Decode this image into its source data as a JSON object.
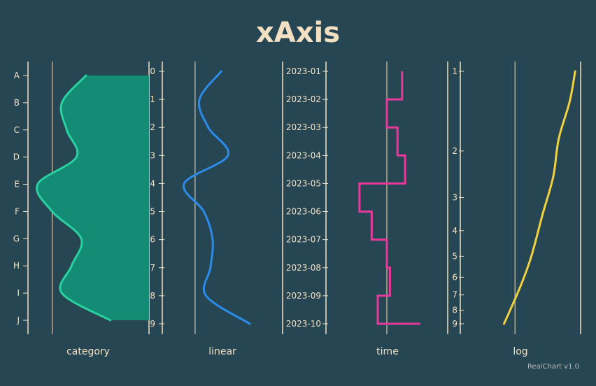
{
  "title": "xAxis",
  "credit": "RealChart v1.0",
  "colors": {
    "background": "#264653",
    "axis": "#f3e0c2",
    "text": "#f3e0c2",
    "category_line": "#2ad0a0",
    "category_fill": "#138b75",
    "linear_line": "#2b8be8",
    "time_line": "#e8399b",
    "log_line": "#f2d13f"
  },
  "chart_data": [
    {
      "type": "area",
      "axis_type": "category",
      "xlabel": "category",
      "categories": [
        "A",
        "B",
        "C",
        "D",
        "E",
        "F",
        "G",
        "H",
        "I",
        "J"
      ],
      "values": [
        7,
        2,
        3,
        5,
        -3,
        0,
        6,
        4,
        2,
        12
      ],
      "xlim": [
        -5,
        20
      ],
      "grid": true
    },
    {
      "type": "line",
      "axis_type": "linear",
      "xlabel": "linear",
      "ticks": [
        "0",
        "1",
        "2",
        "3",
        "4",
        "5",
        "6",
        "7",
        "8",
        "9"
      ],
      "y": [
        0,
        1,
        2,
        3,
        4,
        5,
        6,
        7,
        8,
        9
      ],
      "values": [
        12,
        2,
        6,
        15,
        -5,
        4,
        8,
        7,
        5,
        25
      ],
      "xlim": [
        -15,
        40
      ],
      "grid": true
    },
    {
      "type": "line",
      "axis_type": "time",
      "step": true,
      "xlabel": "time",
      "ticks": [
        "2023-01",
        "2023-02",
        "2023-03",
        "2023-04",
        "2023-05",
        "2023-06",
        "2023-07",
        "2023-08",
        "2023-09",
        "2023-10"
      ],
      "values": [
        10,
        10,
        0,
        7,
        12,
        -18,
        -10,
        0,
        2,
        -6,
        22
      ],
      "xlim": [
        -40,
        40
      ],
      "grid": true
    },
    {
      "type": "line",
      "axis_type": "log",
      "xlabel": "log",
      "ticks": [
        "1",
        "2",
        "3",
        "4",
        "5",
        "6",
        "7",
        "8",
        "9"
      ],
      "x": [
        -2,
        1,
        3,
        5,
        7,
        8,
        10,
        11
      ],
      "y": [
        9,
        6.5,
        5,
        3.5,
        2.5,
        1.8,
        1.3,
        1
      ],
      "xlim": [
        -10,
        12
      ],
      "grid": true
    }
  ]
}
